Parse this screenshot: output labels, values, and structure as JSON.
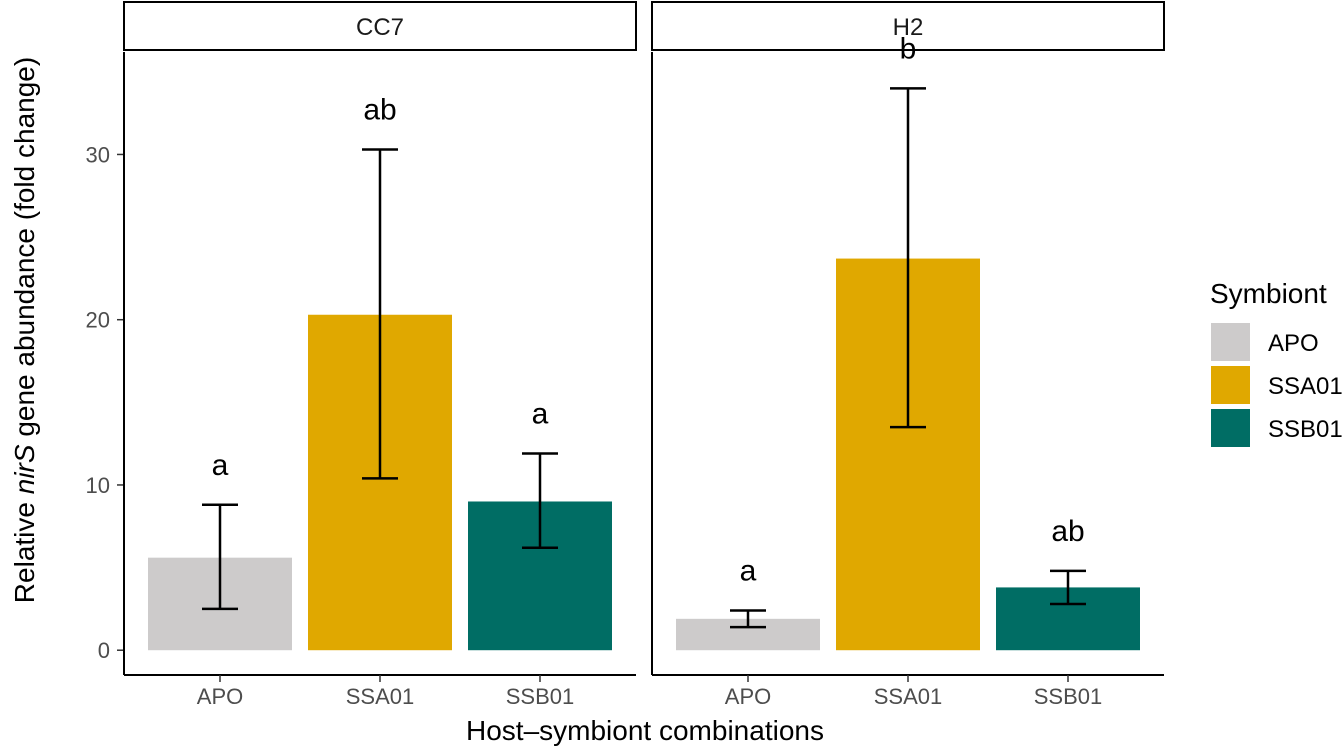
{
  "chart_data": {
    "type": "bar",
    "facets": [
      "CC7",
      "H2"
    ],
    "categories": [
      "APO",
      "SSA01",
      "SSB01"
    ],
    "series": [
      {
        "facet": "CC7",
        "bars": [
          {
            "category": "APO",
            "value": 5.6,
            "err_low": 2.5,
            "err_high": 8.8,
            "label": "a"
          },
          {
            "category": "SSA01",
            "value": 20.3,
            "err_low": 10.4,
            "err_high": 30.3,
            "label": "ab"
          },
          {
            "category": "SSB01",
            "value": 9.0,
            "err_low": 6.2,
            "err_high": 11.9,
            "label": "a"
          }
        ]
      },
      {
        "facet": "H2",
        "bars": [
          {
            "category": "APO",
            "value": 1.9,
            "err_low": 1.4,
            "err_high": 2.4,
            "label": "a"
          },
          {
            "category": "SSA01",
            "value": 23.7,
            "err_low": 13.5,
            "err_high": 34.0,
            "label": "b"
          },
          {
            "category": "SSB01",
            "value": 3.8,
            "err_low": 2.8,
            "err_high": 4.8,
            "label": "ab"
          }
        ]
      }
    ],
    "ylabel_prefix": "Relative ",
    "ylabel_italic": "nirS",
    "ylabel_suffix": " gene abundance (fold change)",
    "xlabel": "Host–symbiont combinations",
    "yticks": [
      0,
      10,
      20,
      30
    ],
    "ylim": [
      -1.5,
      36.2
    ],
    "legend": {
      "title": "Symbiont",
      "entries": [
        {
          "label": "APO",
          "color": "#cdcbcb"
        },
        {
          "label": "SSA01",
          "color": "#e0a800"
        },
        {
          "label": "SSB01",
          "color": "#006d64"
        }
      ]
    }
  }
}
